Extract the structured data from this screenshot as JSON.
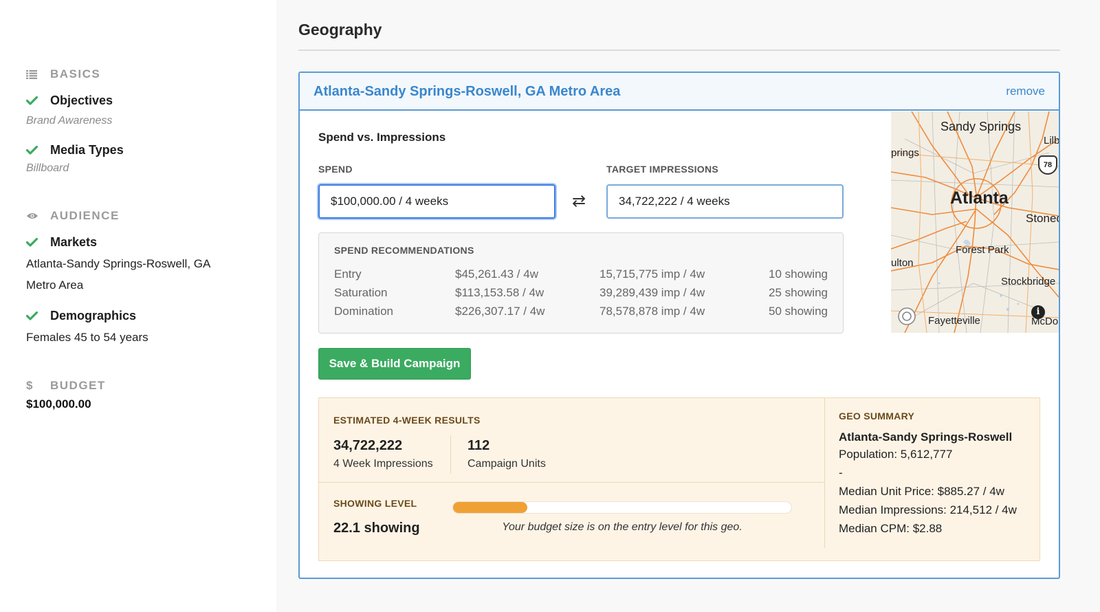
{
  "sidebar": {
    "basics": {
      "label": "BASICS",
      "icon": "list-icon"
    },
    "objectives": {
      "label": "Objectives",
      "value": "Brand Awareness"
    },
    "media_types": {
      "label": "Media Types",
      "value": "Billboard"
    },
    "audience": {
      "label": "AUDIENCE",
      "icon": "eye-icon"
    },
    "markets": {
      "label": "Markets",
      "value": "Atlanta-Sandy Springs-Roswell, GA Metro Area"
    },
    "demographics": {
      "label": "Demographics",
      "value": "Females 45 to 54 years"
    },
    "budget": {
      "label": "BUDGET",
      "icon": "dollar-icon",
      "value": "$100,000.00"
    }
  },
  "main": {
    "title": "Geography",
    "card": {
      "title": "Atlanta-Sandy Springs-Roswell, GA Metro Area",
      "remove_label": "remove",
      "svi_title": "Spend vs. Impressions",
      "spend": {
        "label": "SPEND",
        "value": "$100,000.00 / 4 weeks"
      },
      "impressions": {
        "label": "TARGET IMPRESSIONS",
        "value": "34,722,222 / 4 weeks"
      },
      "recommendations": {
        "title": "SPEND RECOMMENDATIONS",
        "rows": [
          {
            "name": "Entry",
            "spend": "$45,261.43 / 4w",
            "impressions": "15,715,775 imp / 4w",
            "showing": "10 showing"
          },
          {
            "name": "Saturation",
            "spend": "$113,153.58 / 4w",
            "impressions": "39,289,439 imp / 4w",
            "showing": "25 showing"
          },
          {
            "name": "Domination",
            "spend": "$226,307.17 / 4w",
            "impressions": "78,578,878 imp / 4w",
            "showing": "50 showing"
          }
        ]
      },
      "save_button": "Save & Build Campaign",
      "map": {
        "labels": {
          "sandy_springs": "Sandy Springs",
          "lilburn": "Lilb",
          "springs": "prings",
          "atlanta": "Atlanta",
          "stone": "Stonec",
          "forest_park": "Forest Park",
          "fulton": "ulton",
          "stockbridge": "Stockbridge",
          "fayetteville": "Fayetteville",
          "mcdonough": "McDo",
          "shield": "78"
        }
      },
      "results": {
        "title": "ESTIMATED 4-WEEK RESULTS",
        "impressions_value": "34,722,222",
        "impressions_label": "4 Week Impressions",
        "units_value": "112",
        "units_label": "Campaign Units",
        "showing_title": "SHOWING LEVEL",
        "showing_value": "22.1 showing",
        "showing_fraction": 0.22,
        "showing_note": "Your budget size is on the entry level for this geo."
      },
      "geo_summary": {
        "title": "GEO SUMMARY",
        "name": "Atlanta-Sandy Springs-Roswell",
        "population": "Population: 5,612,777",
        "dash": "-",
        "median_unit_price": "Median Unit Price: $885.27 / 4w",
        "median_impressions": "Median Impressions: 214,512 / 4w",
        "median_cpm": "Median CPM: $2.88"
      }
    }
  },
  "colors": {
    "accent_blue": "#3a87cc",
    "check_green": "#3bab61",
    "progress_orange": "#f0a136"
  }
}
